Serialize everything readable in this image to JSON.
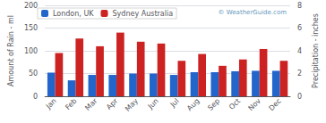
{
  "chart_data": {
    "type": "bar",
    "categories": [
      "Jan",
      "Feb",
      "Mar",
      "Apr",
      "May",
      "Jun",
      "Jul",
      "Aug",
      "Sep",
      "Oct",
      "Nov",
      "Dec"
    ],
    "series": [
      {
        "name": "London, UK",
        "color": "#2266cc",
        "values": [
          52,
          35,
          47,
          47,
          50,
          50,
          47,
          53,
          53,
          55,
          56,
          56
        ]
      },
      {
        "name": "Sydney Australia",
        "color": "#cc2222",
        "values": [
          95,
          127,
          110,
          140,
          120,
          116,
          78,
          93,
          67,
          81,
          104,
          78
        ]
      }
    ],
    "ylabel": "Amount of Rain - ml",
    "y2label": "Precipitation - inches",
    "ylim": [
      0,
      200
    ],
    "yticks": [
      0,
      50,
      100,
      150,
      200
    ],
    "y2lim": [
      0,
      8
    ],
    "y2ticks": [
      0,
      2,
      4,
      6,
      8
    ],
    "annotation": "© WeatherGuide.com",
    "grid": true,
    "legend": "upper left"
  }
}
